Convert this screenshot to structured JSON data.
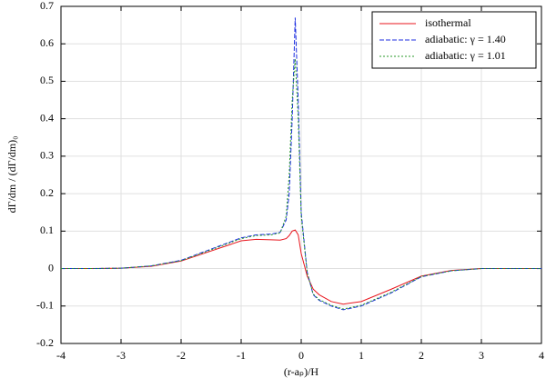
{
  "chart_data": {
    "type": "line",
    "x_label": "(r-aₚ)/H",
    "y_label": "dΓ/dm / (dΓ/dm)₀",
    "x": [
      -4,
      -3.5,
      -3,
      -2.5,
      -2,
      -1.5,
      -1,
      -0.75,
      -0.5,
      -0.35,
      -0.25,
      -0.2,
      -0.15,
      -0.1,
      -0.05,
      0,
      0.1,
      0.2,
      0.3,
      0.5,
      0.7,
      1,
      1.5,
      2,
      2.5,
      3,
      3.5,
      4
    ],
    "series": [
      {
        "name": "isothermal",
        "color": "#e8141c",
        "dash": "none",
        "values": [
          0,
          0,
          0.001,
          0.006,
          0.02,
          0.047,
          0.074,
          0.078,
          0.077,
          0.076,
          0.08,
          0.088,
          0.1,
          0.103,
          0.09,
          0.04,
          -0.02,
          -0.055,
          -0.07,
          -0.088,
          -0.095,
          -0.088,
          -0.055,
          -0.02,
          -0.005,
          0,
          0,
          0
        ]
      },
      {
        "name": "adiabatic: γ = 1.40",
        "color": "#1c2ee0",
        "dash": "5,2",
        "values": [
          0,
          0,
          0.001,
          0.007,
          0.022,
          0.052,
          0.082,
          0.09,
          0.092,
          0.097,
          0.13,
          0.2,
          0.4,
          0.67,
          0.45,
          0.15,
          -0.01,
          -0.07,
          -0.085,
          -0.1,
          -0.11,
          -0.1,
          -0.065,
          -0.022,
          -0.006,
          0,
          0,
          0
        ]
      },
      {
        "name": "adiabatic: γ = 1.01",
        "color": "#2a9a2a",
        "dash": "2,2",
        "values": [
          0,
          0,
          0.001,
          0.007,
          0.021,
          0.05,
          0.08,
          0.088,
          0.09,
          0.095,
          0.14,
          0.25,
          0.45,
          0.56,
          0.4,
          0.14,
          -0.012,
          -0.068,
          -0.083,
          -0.098,
          -0.108,
          -0.098,
          -0.063,
          -0.021,
          -0.006,
          0,
          0,
          0
        ]
      }
    ],
    "xlim": [
      -4,
      4
    ],
    "xticks": [
      -4,
      -3,
      -2,
      -1,
      0,
      1,
      2,
      3,
      4
    ],
    "ylim": [
      -0.2,
      0.7
    ],
    "yticks": [
      -0.2,
      -0.1,
      0,
      0.1,
      0.2,
      0.3,
      0.4,
      0.5,
      0.6,
      0.7
    ],
    "grid": true,
    "legend": "top-right"
  }
}
